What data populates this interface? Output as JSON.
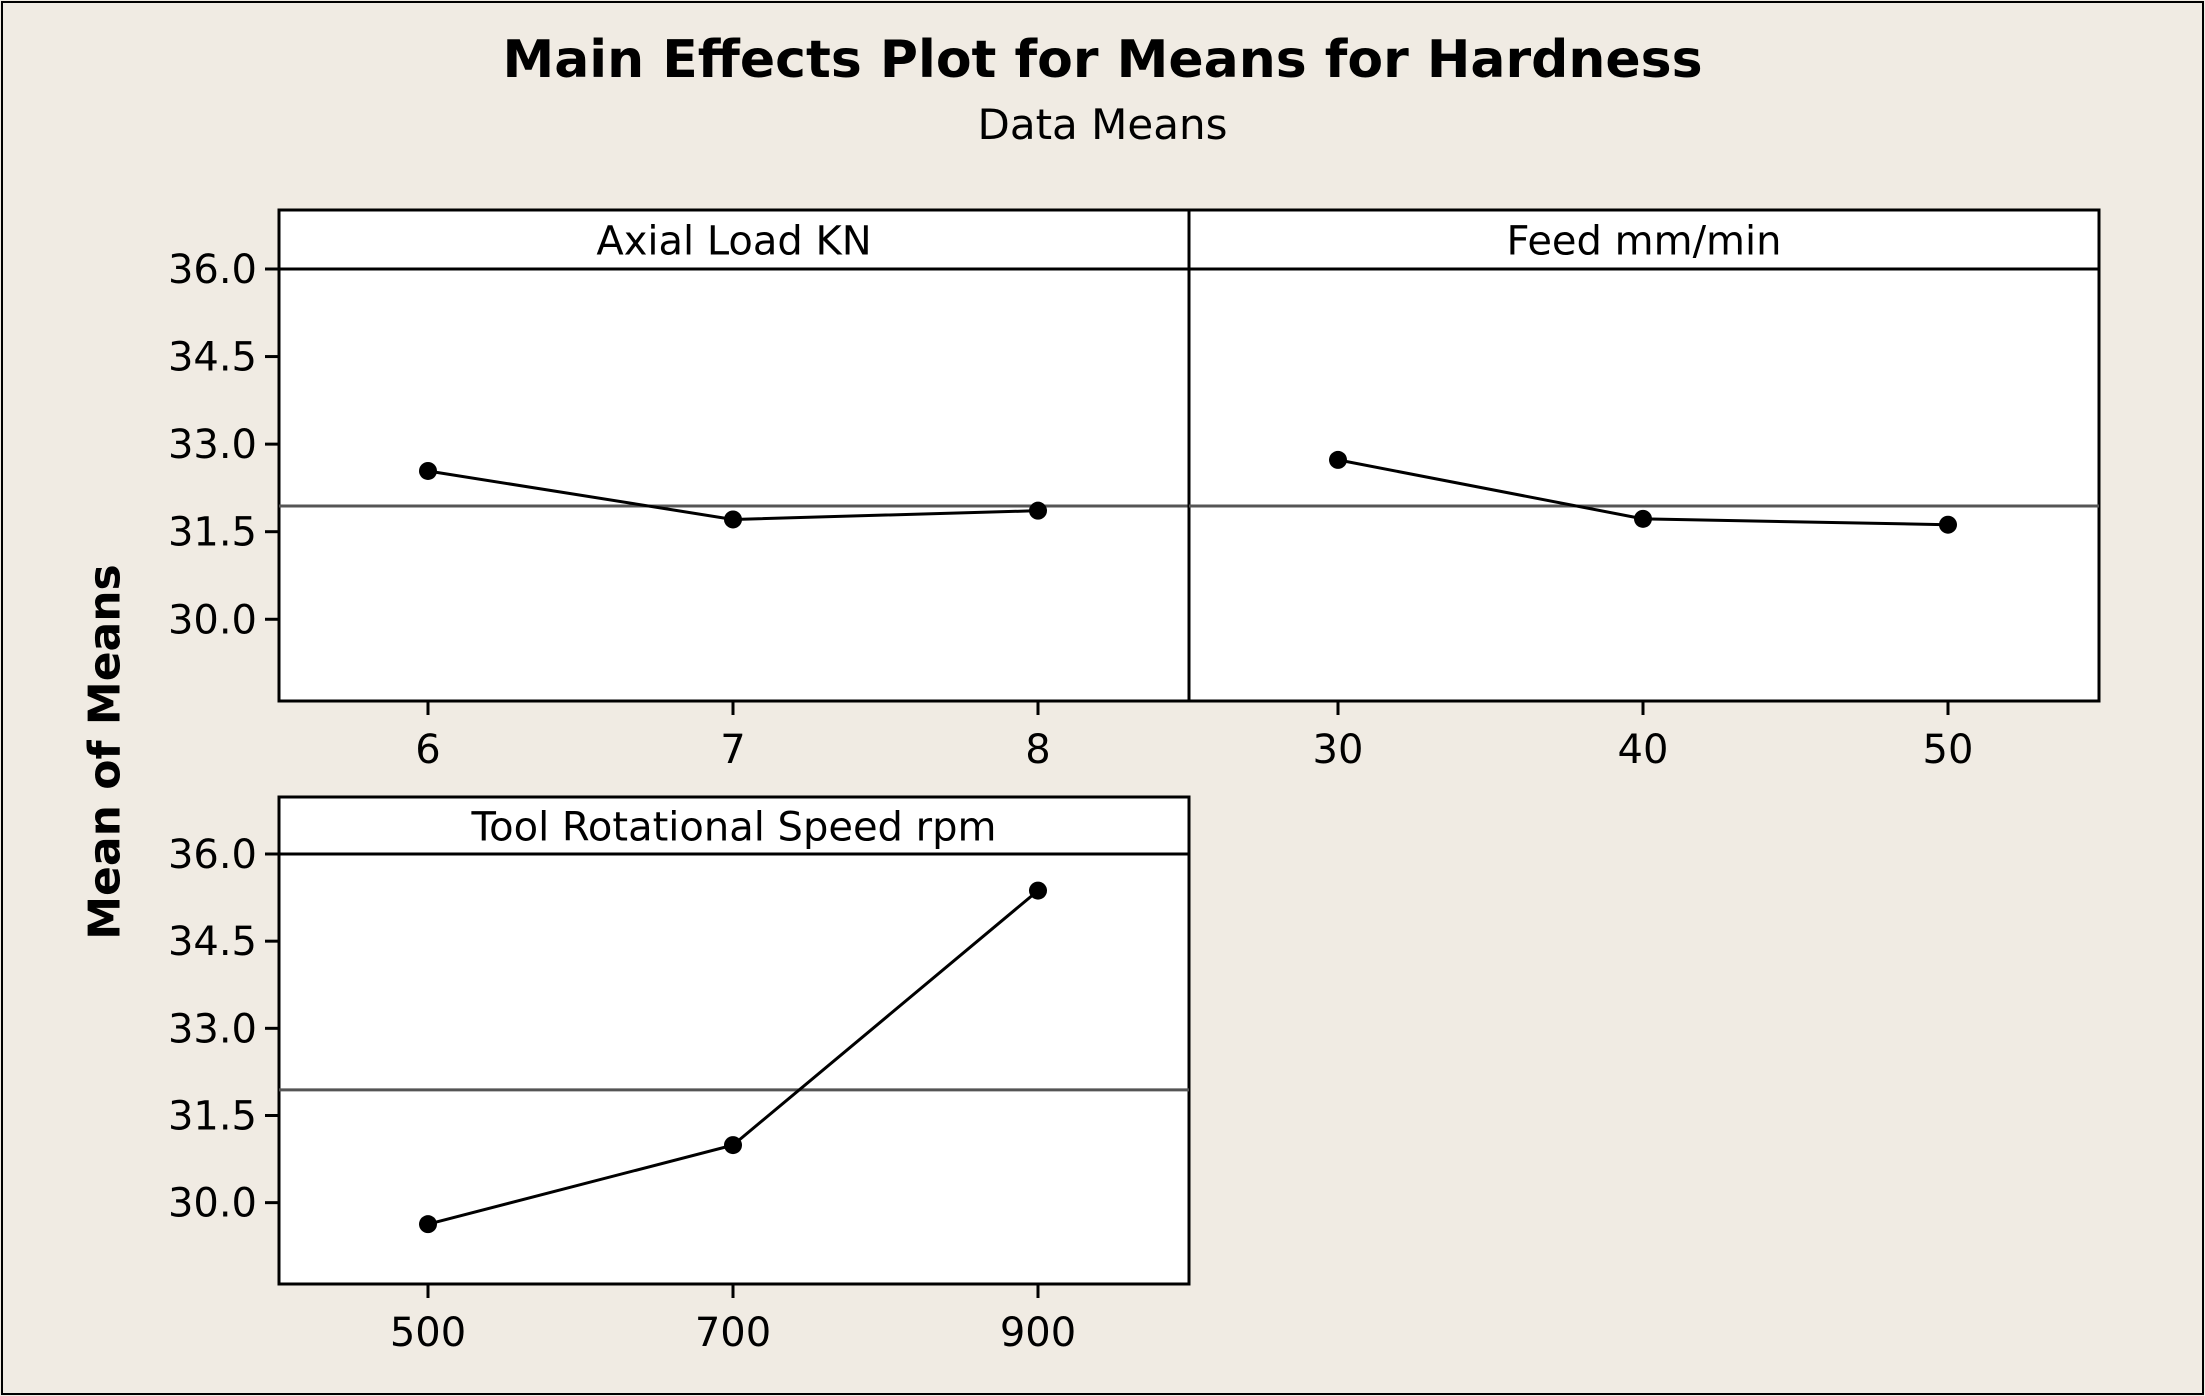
{
  "chart_data": {
    "type": "line",
    "title": "Main Effects Plot for Means for Hardness",
    "subtitle": "Data Means",
    "ylabel": "Mean of Means",
    "ylim": [
      28.6,
      36.0
    ],
    "yticks": [
      "36.0",
      "34.5",
      "33.0",
      "31.5",
      "30.0"
    ],
    "reference_line": 31.94,
    "grid": false,
    "panels": [
      {
        "label": "Axial Load KN",
        "categories": [
          "6",
          "7",
          "8"
        ],
        "values": [
          32.54,
          31.71,
          31.86
        ]
      },
      {
        "label": "Feed mm/min",
        "categories": [
          "30",
          "40",
          "50"
        ],
        "values": [
          32.73,
          31.72,
          31.62
        ]
      },
      {
        "label": "Tool Rotational Speed rpm",
        "categories": [
          "500",
          "700",
          "900"
        ],
        "values": [
          29.63,
          30.99,
          35.37
        ]
      }
    ]
  },
  "colors": {
    "background": "#f0ebe3",
    "panel": "#ffffff",
    "line": "#000000",
    "reference": "#555555"
  }
}
